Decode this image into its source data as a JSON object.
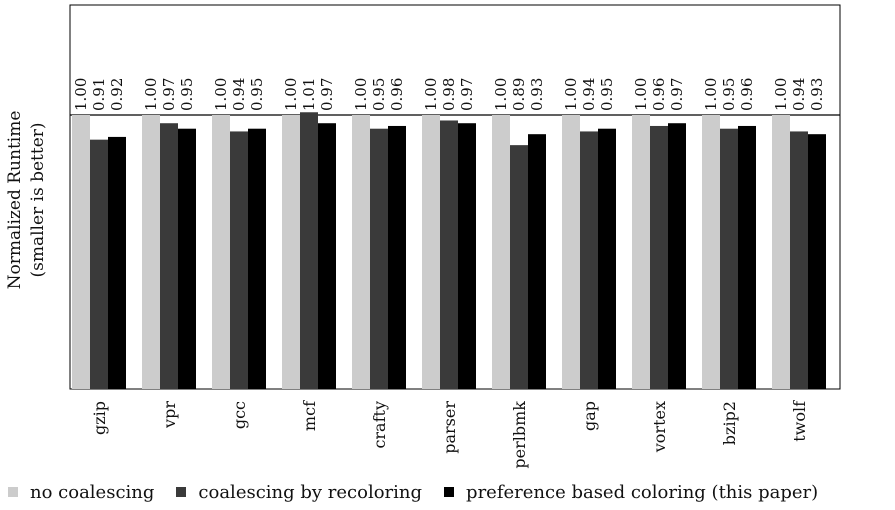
{
  "chart_data": {
    "type": "bar",
    "categories": [
      "gzip",
      "vpr",
      "gcc",
      "mcf",
      "crafty",
      "parser",
      "perlbmk",
      "gap",
      "vortex",
      "bzip2",
      "twolf"
    ],
    "series": [
      {
        "name": "no coalescing",
        "values": [
          1.0,
          1.0,
          1.0,
          1.0,
          1.0,
          1.0,
          1.0,
          1.0,
          1.0,
          1.0,
          1.0
        ],
        "labels": [
          "1.00",
          "1.00",
          "1.00",
          "1.00",
          "1.00",
          "1.00",
          "1.00",
          "1.00",
          "1.00",
          "1.00",
          "1.00"
        ],
        "color": "#cccccc"
      },
      {
        "name": "coalescing by recoloring",
        "values": [
          0.91,
          0.97,
          0.94,
          1.01,
          0.95,
          0.98,
          0.89,
          0.94,
          0.96,
          0.95,
          0.94
        ],
        "labels": [
          "0.91",
          "0.97",
          "0.94",
          "1.01",
          "0.95",
          "0.98",
          "0.89",
          "0.94",
          "0.96",
          "0.95",
          "0.94"
        ],
        "color": "#3a3a3a"
      },
      {
        "name": "preference based coloring (this paper)",
        "values": [
          0.92,
          0.95,
          0.95,
          0.97,
          0.96,
          0.97,
          0.93,
          0.95,
          0.97,
          0.96,
          0.93
        ],
        "labels": [
          "0.92",
          "0.95",
          "0.95",
          "0.97",
          "0.96",
          "0.97",
          "0.93",
          "0.95",
          "0.97",
          "0.96",
          "0.93"
        ],
        "color": "#000000"
      }
    ],
    "title": "",
    "xlabel": "",
    "ylabel": "Normalized Runtime",
    "ylabel2": "(smaller is better)",
    "ylim": [
      0,
      1.4
    ],
    "grid": false,
    "legend_position": "bottom"
  }
}
